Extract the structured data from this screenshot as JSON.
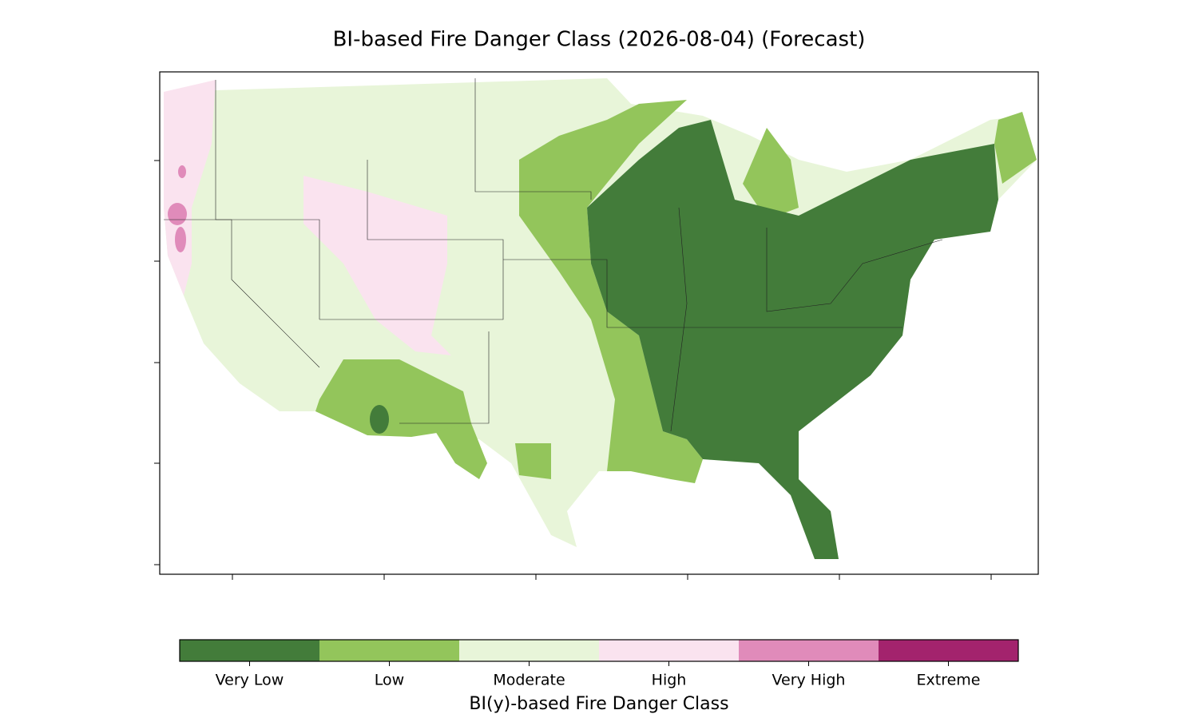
{
  "title": "BI-based Fire Danger Class (2026-08-04) (Forecast)",
  "colorbar": {
    "label": "BI(y)-based Fire Danger Class",
    "classes": [
      {
        "name": "Very Low",
        "color": "#437c3a"
      },
      {
        "name": "Low",
        "color": "#93c55b"
      },
      {
        "name": "Moderate",
        "color": "#e8f5d9"
      },
      {
        "name": "High",
        "color": "#fae3ef"
      },
      {
        "name": "Very High",
        "color": "#e08bba"
      },
      {
        "name": "Extreme",
        "color": "#a3236d"
      }
    ]
  }
}
